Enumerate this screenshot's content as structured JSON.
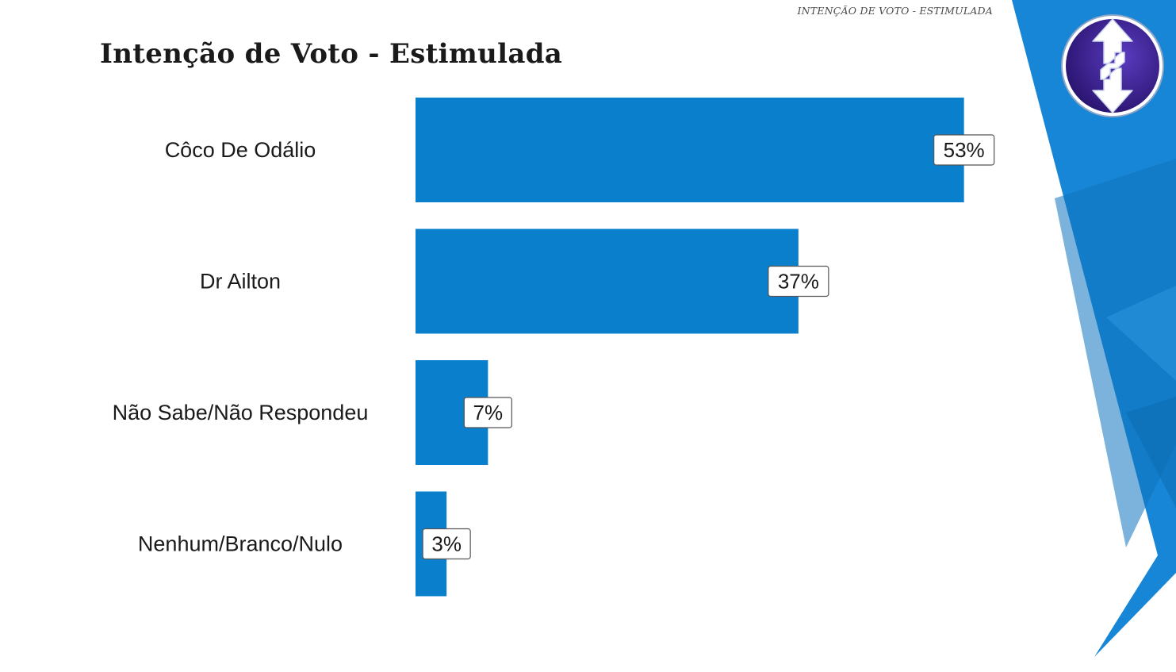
{
  "header": {
    "section_tag": "INTENÇÃO DE VOTO - ESTIMULADA"
  },
  "chart_data": {
    "type": "bar",
    "orientation": "horizontal",
    "title": "Intenção de Voto - Estimulada",
    "xlabel": "",
    "ylabel": "",
    "categories": [
      "Côco De Odálio",
      "Dr Ailton",
      "Não Sabe/Não Respondeu",
      "Nenhum/Branco/Nulo"
    ],
    "values": [
      53,
      37,
      7,
      3
    ],
    "value_labels": [
      "53%",
      "37%",
      "7%",
      "3%"
    ],
    "xlim": [
      0,
      60
    ],
    "grid": false,
    "legend": "none"
  },
  "colors": {
    "bar": "#0a7fcc",
    "accent_band": "#1786d6",
    "logo_inner": "#3b1f8f"
  },
  "logo": {
    "icon": "double-arrow-s-logo-icon"
  }
}
